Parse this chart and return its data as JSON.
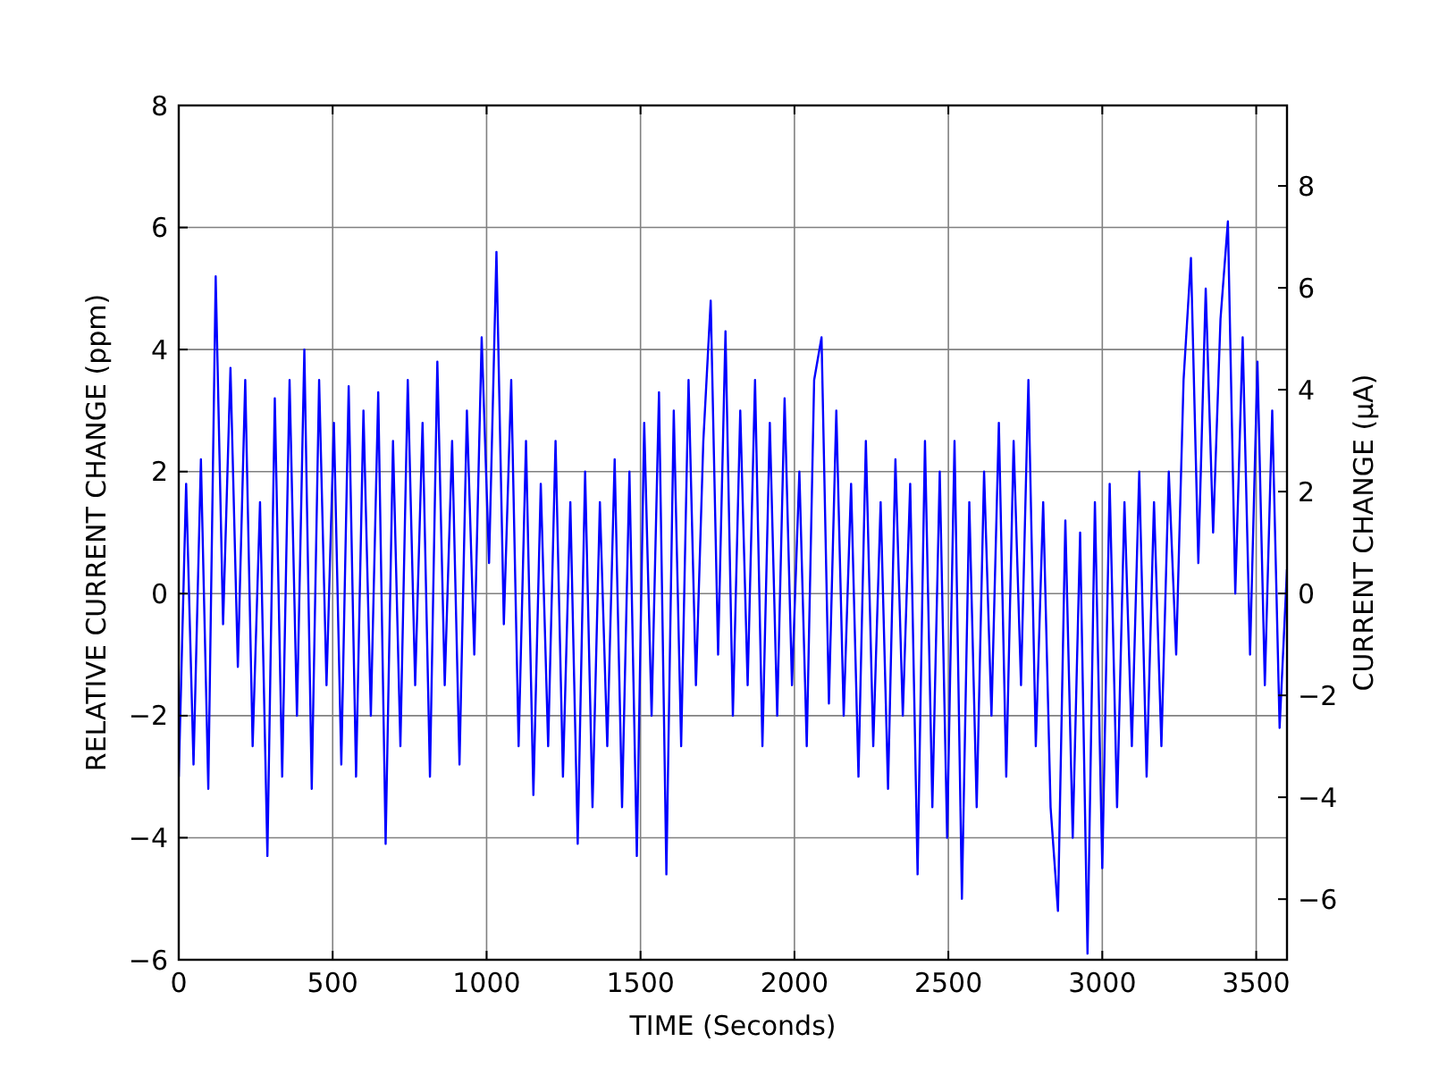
{
  "chart_data": {
    "type": "line",
    "xlabel": "TIME (Seconds)",
    "ylabel": "RELATIVE CURRENT CHANGE (ppm)",
    "y2label": "CURRENT CHANGE (µA)",
    "x": [
      0,
      24,
      48,
      72,
      96,
      120,
      144,
      168,
      192,
      216,
      240,
      264,
      288,
      312,
      336,
      360,
      384,
      408,
      432,
      456,
      480,
      504,
      528,
      552,
      576,
      600,
      624,
      648,
      672,
      696,
      720,
      744,
      768,
      792,
      816,
      840,
      864,
      888,
      912,
      936,
      960,
      984,
      1008,
      1032,
      1056,
      1080,
      1104,
      1128,
      1152,
      1176,
      1200,
      1224,
      1248,
      1272,
      1296,
      1320,
      1344,
      1368,
      1392,
      1416,
      1440,
      1464,
      1488,
      1512,
      1536,
      1560,
      1584,
      1608,
      1632,
      1656,
      1680,
      1704,
      1728,
      1752,
      1776,
      1800,
      1824,
      1848,
      1872,
      1896,
      1920,
      1944,
      1968,
      1992,
      2016,
      2040,
      2064,
      2088,
      2112,
      2136,
      2160,
      2184,
      2208,
      2232,
      2256,
      2280,
      2304,
      2328,
      2352,
      2376,
      2400,
      2424,
      2448,
      2472,
      2496,
      2520,
      2544,
      2568,
      2592,
      2616,
      2640,
      2664,
      2688,
      2712,
      2736,
      2760,
      2784,
      2808,
      2832,
      2856,
      2880,
      2904,
      2928,
      2952,
      2976,
      3000,
      3024,
      3048,
      3072,
      3096,
      3120,
      3144,
      3168,
      3192,
      3216,
      3240,
      3264,
      3288,
      3312,
      3336,
      3360,
      3384,
      3408,
      3432,
      3456,
      3480,
      3504,
      3528,
      3552,
      3576,
      3600
    ],
    "series": [
      {
        "color": "#0000ff",
        "values": [
          -3.0,
          1.8,
          -2.8,
          2.2,
          -3.2,
          5.2,
          -0.5,
          3.7,
          -1.2,
          3.5,
          -2.5,
          1.5,
          -4.3,
          3.2,
          -3.0,
          3.5,
          -2.0,
          4.0,
          -3.2,
          3.5,
          -1.5,
          2.8,
          -2.8,
          3.4,
          -3.0,
          3.0,
          -2.0,
          3.3,
          -4.1,
          2.5,
          -2.5,
          3.5,
          -1.5,
          2.8,
          -3.0,
          3.8,
          -1.5,
          2.5,
          -2.8,
          3.0,
          -1.0,
          4.2,
          0.5,
          5.6,
          -0.5,
          3.5,
          -2.5,
          2.5,
          -3.3,
          1.8,
          -2.5,
          2.5,
          -3.0,
          1.5,
          -4.1,
          2.0,
          -3.5,
          1.5,
          -2.5,
          2.2,
          -3.5,
          2.0,
          -4.3,
          2.8,
          -2.0,
          3.3,
          -4.6,
          3.0,
          -2.5,
          3.5,
          -1.5,
          2.5,
          4.8,
          -1.0,
          4.3,
          -2.0,
          3.0,
          -1.5,
          3.5,
          -2.5,
          2.8,
          -2.0,
          3.2,
          -1.5,
          2.0,
          -2.5,
          3.5,
          4.2,
          -1.8,
          3.0,
          -2.0,
          1.8,
          -3.0,
          2.5,
          -2.5,
          1.5,
          -3.2,
          2.2,
          -2.0,
          1.8,
          -4.6,
          2.5,
          -3.5,
          2.0,
          -4.0,
          2.5,
          -5.0,
          1.5,
          -3.5,
          2.0,
          -2.0,
          2.8,
          -3.0,
          2.5,
          -1.5,
          3.5,
          -2.5,
          1.5,
          -3.5,
          -5.2,
          1.2,
          -4.0,
          1.0,
          -5.9,
          1.5,
          -4.5,
          1.8,
          -3.5,
          1.5,
          -2.5,
          2.0,
          -3.0,
          1.5,
          -2.5,
          2.0,
          -1.0,
          3.5,
          5.5,
          0.5,
          5.0,
          1.0,
          4.5,
          6.1,
          0.0,
          4.2,
          -1.0,
          3.8,
          -1.5,
          3.0,
          -2.2,
          0.4
        ]
      }
    ],
    "xlim": [
      0,
      3600
    ],
    "xticks": [
      0,
      500,
      1000,
      1500,
      2000,
      2500,
      3000,
      3500
    ],
    "ylim": [
      -6,
      8
    ],
    "yticks": [
      -6,
      -4,
      -2,
      0,
      2,
      4,
      6,
      8
    ],
    "y2lim": [
      -7.19,
      9.58
    ],
    "y2ticks": [
      -6,
      -4,
      -2,
      0,
      2,
      4,
      6,
      8
    ],
    "grid": true,
    "marker": "none",
    "line_style": "solid"
  }
}
